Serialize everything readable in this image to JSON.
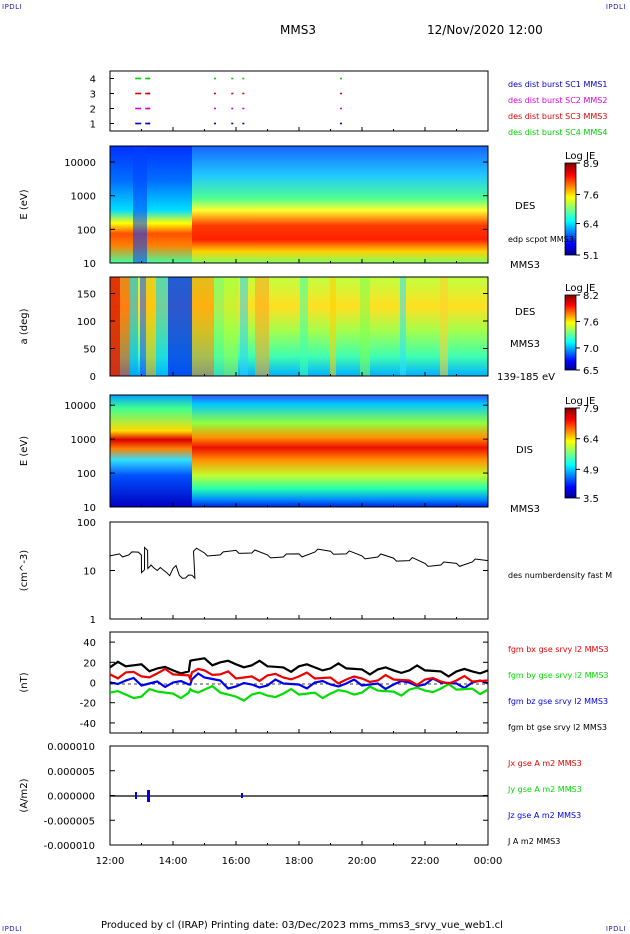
{
  "header": {
    "corner_tl": "IPDLI",
    "corner_tr": "IPDLI",
    "corner_bl": "IPDLI",
    "corner_br": "IPDLI",
    "spacecraft": "MMS3",
    "datetime": "12/Nov/2020 12:00"
  },
  "footer": {
    "text": "Produced by cl (IRAP)   Printing date: 03/Dec/2023   mms_mms3_srvy_vue_web1.cl"
  },
  "colors": {
    "mms1": "#0000cc",
    "mms2": "#dd00dd",
    "mms3": "#dd0000",
    "mms4": "#00cc00",
    "bx": "#ee0000",
    "by": "#00dd00",
    "bz": "#0000ee",
    "bt": "#000000"
  },
  "chart_data": [
    {
      "type": "scatter",
      "panel": "burst availability",
      "yticks": [
        "1",
        "2",
        "3",
        "4"
      ],
      "ylim": [
        0.5,
        4.5
      ],
      "legend": [
        {
          "label": "des dist burst SC1 MMS1",
          "color": "#0000cc"
        },
        {
          "label": "des dist burst SC2 MMS2",
          "color": "#dd00dd"
        },
        {
          "label": "des dist burst SC3 MMS3",
          "color": "#dd0000"
        },
        {
          "label": "des dist burst SC4 MMS4",
          "color": "#00cc00"
        }
      ],
      "intervals_hours": [
        12.8,
        13.2,
        15.3,
        15.85,
        16.2,
        19.3
      ]
    },
    {
      "type": "heatmap",
      "panel": "DES energy spectrogram",
      "ylabel": "E (eV)",
      "yticks": [
        "10",
        "100",
        "1000",
        "10000"
      ],
      "ylim": [
        10,
        30000
      ],
      "yscale": "log",
      "labels": [
        "DES",
        "edp scpot MMS3",
        "MMS3"
      ],
      "colorbar": {
        "title": "Log JE",
        "ticks": [
          "8.9",
          "7.6",
          "6.4",
          "5.1"
        ],
        "range": [
          5.1,
          8.9
        ]
      }
    },
    {
      "type": "heatmap",
      "panel": "DES pitch angle",
      "ylabel": "a (deg)",
      "yticks": [
        "0",
        "50",
        "100",
        "150"
      ],
      "ylim": [
        0,
        180
      ],
      "labels": [
        "DES",
        "MMS3",
        "139-185 eV"
      ],
      "colorbar": {
        "title": "Log JE",
        "ticks": [
          "8.2",
          "7.6",
          "7.0",
          "6.5"
        ],
        "range": [
          6.5,
          8.2
        ]
      }
    },
    {
      "type": "heatmap",
      "panel": "DIS energy spectrogram",
      "ylabel": "E (eV)",
      "yticks": [
        "10",
        "100",
        "1000",
        "10000"
      ],
      "ylim": [
        10,
        20000
      ],
      "yscale": "log",
      "labels": [
        "DIS",
        "MMS3"
      ],
      "colorbar": {
        "title": "Log JE",
        "ticks": [
          "7.9",
          "6.4",
          "4.9",
          "3.5"
        ],
        "range": [
          3.5,
          7.9
        ]
      }
    },
    {
      "type": "line",
      "panel": "number density",
      "ylabel": "(cm^-3)",
      "yticks": [
        "1",
        "10",
        "100"
      ],
      "ylim": [
        1,
        100
      ],
      "yscale": "log",
      "series": [
        {
          "name": "des numberdensity fast M",
          "color": "#000000",
          "x": [
            12.0,
            12.3,
            12.6,
            12.9,
            13.0,
            13.1,
            13.2,
            13.3,
            13.5,
            13.8,
            14.0,
            14.2,
            14.4,
            14.6,
            14.65,
            15.0,
            15.5,
            16.0,
            16.5,
            17.0,
            17.5,
            18.0,
            18.5,
            19.0,
            19.5,
            20.0,
            20.5,
            21.0,
            21.5,
            22.0,
            22.5,
            23.0,
            23.5,
            24.0
          ],
          "y": [
            20,
            22,
            21,
            24,
            9,
            30,
            11,
            13,
            10,
            9,
            11,
            8,
            7,
            8,
            25,
            23,
            21,
            26,
            23,
            21,
            19,
            22,
            24,
            25,
            22,
            20,
            19,
            18,
            16,
            14,
            13,
            14,
            15,
            16
          ]
        }
      ]
    },
    {
      "type": "line",
      "panel": "magnetic field",
      "ylabel": "(nT)",
      "yticks": [
        "-40",
        "-20",
        "0",
        "20",
        "40"
      ],
      "ylim": [
        -50,
        50
      ],
      "series": [
        {
          "name": "fgm bx gse srvy l2 MMS3",
          "color": "#ee0000",
          "x": [
            12.0,
            12.5,
            13.0,
            13.5,
            14.0,
            14.5,
            14.6,
            15.0,
            15.5,
            16.0,
            16.5,
            17.0,
            17.5,
            18.0,
            18.5,
            19.0,
            19.5,
            20.0,
            20.5,
            21.0,
            21.5,
            22.0,
            22.5,
            23.0,
            23.5,
            24.0
          ],
          "y": [
            8,
            10,
            6,
            9,
            8,
            7,
            10,
            12,
            8,
            4,
            6,
            7,
            5,
            6,
            4,
            5,
            3,
            4,
            2,
            3,
            2,
            3,
            1,
            2,
            1,
            2
          ]
        },
        {
          "name": "fgm by gse srvy l2 MMS3",
          "color": "#00dd00",
          "x": [
            12.0,
            12.5,
            13.0,
            13.5,
            14.0,
            14.5,
            14.6,
            15.0,
            15.5,
            16.0,
            16.5,
            17.0,
            17.5,
            18.0,
            18.5,
            19.0,
            19.5,
            20.0,
            20.5,
            21.0,
            21.5,
            22.0,
            22.5,
            23.0,
            23.5,
            24.0
          ],
          "y": [
            -10,
            -12,
            -14,
            -9,
            -11,
            -10,
            -8,
            -7,
            -10,
            -14,
            -12,
            -13,
            -11,
            -12,
            -10,
            -11,
            -9,
            -10,
            -8,
            -9,
            -7,
            -8,
            -6,
            -7,
            -6,
            -7
          ]
        },
        {
          "name": "fgm bz gse srvy l2 MMS3",
          "color": "#0000ee",
          "x": [
            12.0,
            12.5,
            13.0,
            13.5,
            14.0,
            14.5,
            14.6,
            15.0,
            15.5,
            16.0,
            16.5,
            17.0,
            17.5,
            18.0,
            18.5,
            19.0,
            19.5,
            20.0,
            20.5,
            21.0,
            21.5,
            22.0,
            22.5,
            23.0,
            23.5,
            24.0
          ],
          "y": [
            0,
            2,
            -3,
            1,
            0,
            -2,
            3,
            5,
            2,
            -4,
            -2,
            -3,
            -1,
            -2,
            0,
            -2,
            -1,
            -3,
            -1,
            -2,
            0,
            -2,
            0,
            -1,
            0,
            -1
          ]
        },
        {
          "name": "fgm bt gse srvy l2 MMS3",
          "color": "#000000",
          "x": [
            12.0,
            12.5,
            13.0,
            13.5,
            14.0,
            14.5,
            14.6,
            15.0,
            15.5,
            16.0,
            16.5,
            17.0,
            17.5,
            18.0,
            18.5,
            19.0,
            19.5,
            20.0,
            20.5,
            21.0,
            21.5,
            22.0,
            22.5,
            23.0,
            23.5,
            24.0
          ],
          "y": [
            15,
            16,
            18,
            14,
            12,
            11,
            22,
            24,
            20,
            18,
            17,
            16,
            15,
            16,
            15,
            14,
            14,
            13,
            13,
            12,
            12,
            12,
            11,
            11,
            11,
            12
          ]
        }
      ]
    },
    {
      "type": "line",
      "panel": "current density",
      "ylabel": "(A/m2)",
      "yticks": [
        "0.000010",
        "0.000005",
        "0.000000",
        "-0.000005",
        "-0.000010"
      ],
      "ylim": [
        -1e-05,
        1e-05
      ],
      "xticks": [
        "12:00",
        "14:00",
        "16:00",
        "18:00",
        "20:00",
        "22:00",
        "00:00"
      ],
      "series": [
        {
          "name": "Jx gse A m2 MMS3",
          "color": "#ee0000"
        },
        {
          "name": "Jy gse A m2 MMS3",
          "color": "#00dd00"
        },
        {
          "name": "Jz gse A m2 MMS3",
          "color": "#0000ee"
        },
        {
          "name": "J A m2 MMS3",
          "color": "#000000"
        }
      ]
    }
  ]
}
